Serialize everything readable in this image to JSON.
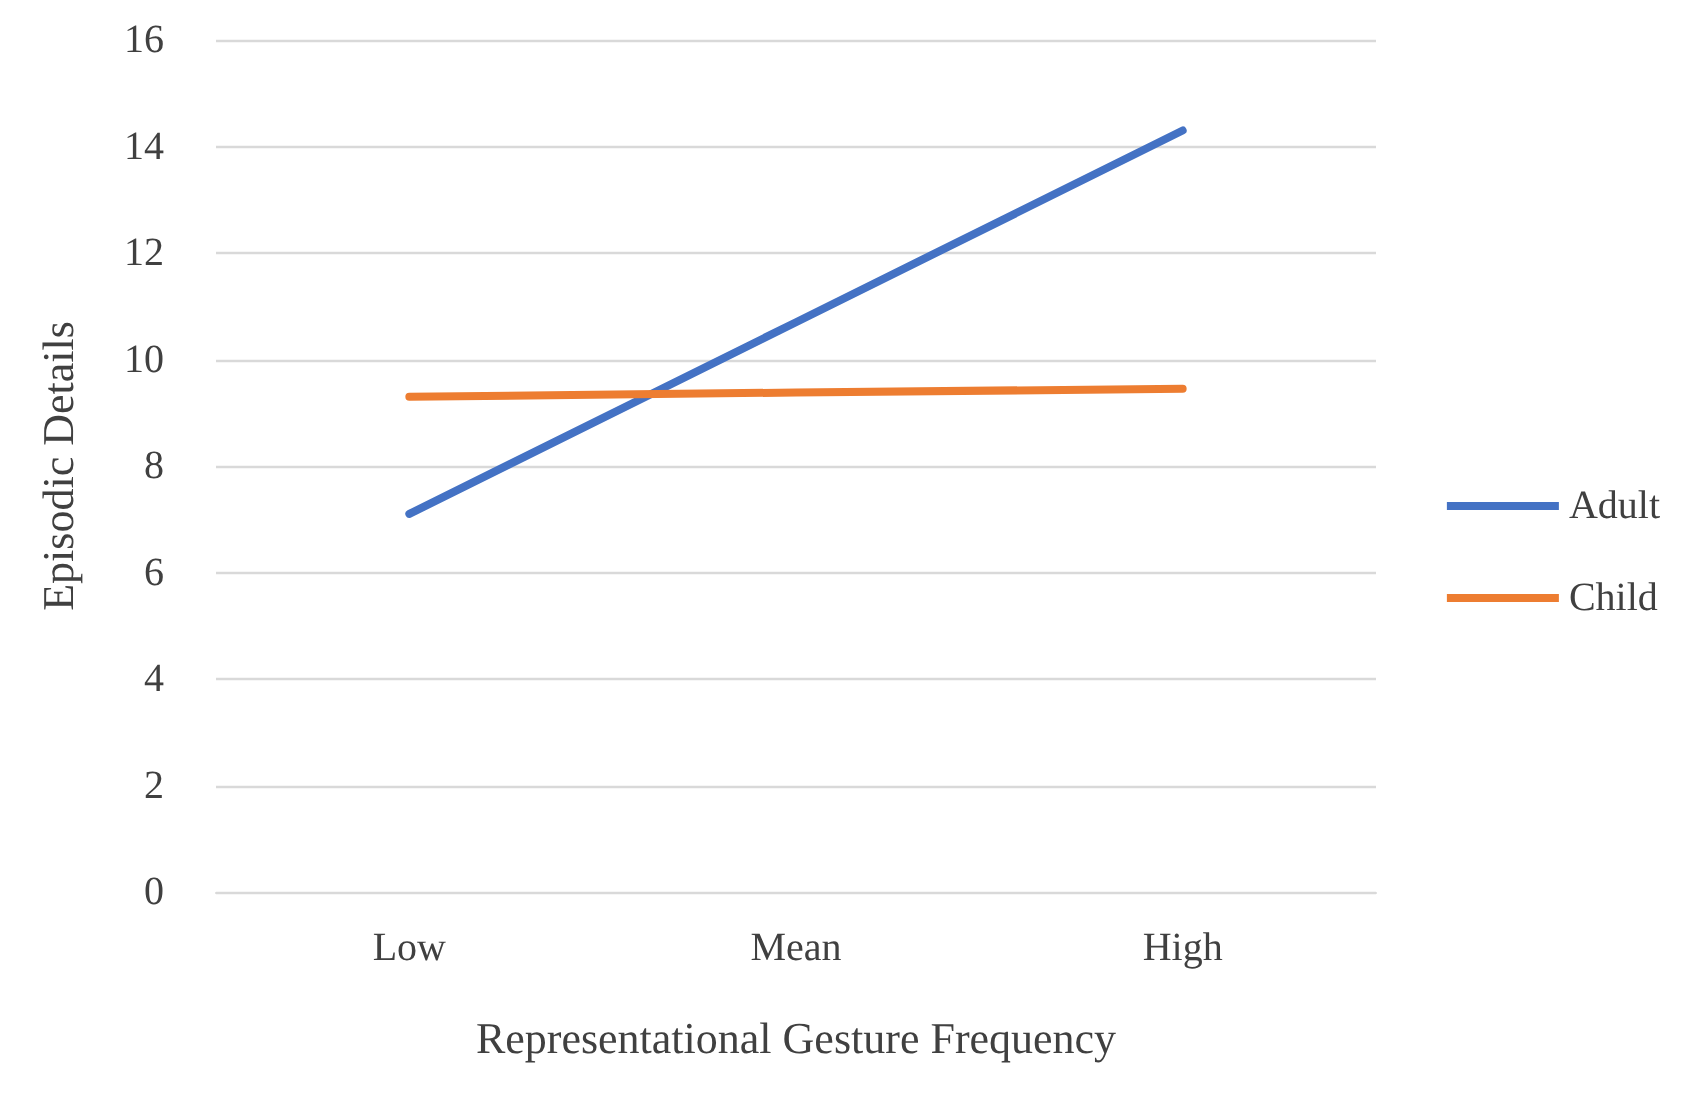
{
  "chart_data": {
    "type": "line",
    "xlabel": "Representational Gesture Frequency",
    "ylabel": "Episodic Details",
    "categories": [
      "Low",
      "Mean",
      "High"
    ],
    "series": [
      {
        "name": "Adult",
        "color": "#4472c4",
        "values": [
          7.1,
          10.7,
          14.3
        ]
      },
      {
        "name": "Child",
        "color": "#ed7d31",
        "values": [
          9.3,
          9.38,
          9.45
        ]
      }
    ],
    "ylim": [
      0,
      16
    ],
    "yticks": [
      0,
      2,
      4,
      6,
      8,
      10,
      12,
      14,
      16
    ],
    "grid": "y",
    "legend": "right",
    "marker": "none",
    "line_style": "solid"
  }
}
